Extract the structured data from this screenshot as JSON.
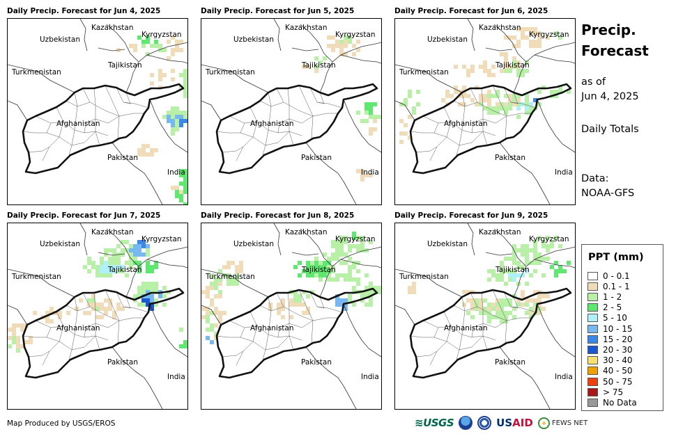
{
  "panels": [
    {
      "title": "Daily Precip. Forecast for Jun 4, 2025",
      "precip_intensity": "moderate-east"
    },
    {
      "title": "Daily Precip. Forecast for Jun 5, 2025",
      "precip_intensity": "light"
    },
    {
      "title": "Daily Precip. Forecast for Jun 6, 2025",
      "precip_intensity": "moderate-north"
    },
    {
      "title": "Daily Precip. Forecast for Jun 7, 2025",
      "precip_intensity": "heavy-north"
    },
    {
      "title": "Daily Precip. Forecast for Jun 8, 2025",
      "precip_intensity": "moderate-north"
    },
    {
      "title": "Daily Precip. Forecast for Jun 9, 2025",
      "precip_intensity": "moderate-northeast"
    }
  ],
  "map_labels": {
    "kazakhstan": "Kazakhstan",
    "kyrgyzstan": "Kyrgyzstan",
    "uzbekistan": "Uzbekistan",
    "tajikistan": "Tajikistan",
    "turkmenistan": "Turkmenistan",
    "afghanistan": "Afghanistan",
    "pakistan": "Pakistan",
    "india": "India"
  },
  "sidebar": {
    "title_line1": "Precip.",
    "title_line2": "Forecast",
    "asof_line1": "as of",
    "asof_line2": "Jun 4, 2025",
    "totals": "Daily Totals",
    "data_line1": "Data:",
    "data_line2": "NOAA-GFS"
  },
  "legend": {
    "title": "PPT (mm)",
    "items": [
      {
        "label": "0 - 0.1",
        "color": "#ffffff"
      },
      {
        "label": "0.1 - 1",
        "color": "#f0dcb8"
      },
      {
        "label": "1 - 2",
        "color": "#b8f0a8"
      },
      {
        "label": "2 - 5",
        "color": "#5fe870"
      },
      {
        "label": "5 - 10",
        "color": "#b0f0f8"
      },
      {
        "label": "10 - 15",
        "color": "#78b8f0"
      },
      {
        "label": "15 - 20",
        "color": "#3a88e8"
      },
      {
        "label": "20 - 30",
        "color": "#1858d0"
      },
      {
        "label": "30 - 40",
        "color": "#f8e070"
      },
      {
        "label": "40 - 50",
        "color": "#f0a000"
      },
      {
        "label": "50 - 75",
        "color": "#f04010"
      },
      {
        "label": "> 75",
        "color": "#a81818"
      },
      {
        "label": "No Data",
        "color": "#999999"
      }
    ]
  },
  "footer": {
    "credit": "Map Produced by USGS/EROS",
    "logo_usgs": "≋USGS",
    "logo_usaid_a": "US",
    "logo_usaid_b": "AID",
    "logo_fewsnet": "FEWS NET"
  }
}
